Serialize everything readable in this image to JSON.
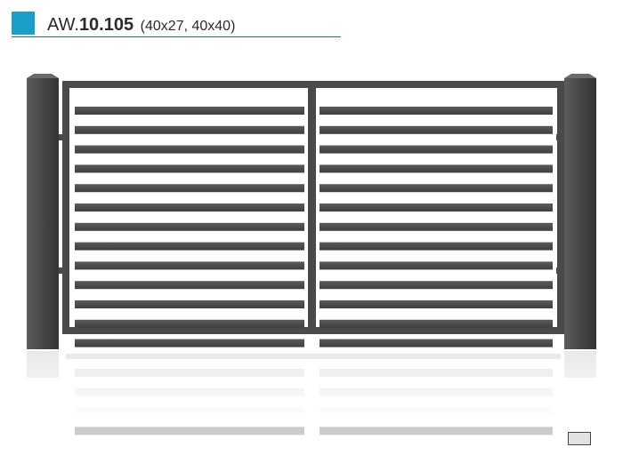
{
  "header": {
    "prefix": "AW.",
    "model": "10.105",
    "dimensions": "(40x27, 40x40)",
    "accent_color": "#1a9fc8"
  },
  "product": {
    "gate_color": "#4a4a4a",
    "horizontal_slats_per_leaf": 13
  },
  "color_swatch": {
    "color": "#e2e2e2"
  }
}
